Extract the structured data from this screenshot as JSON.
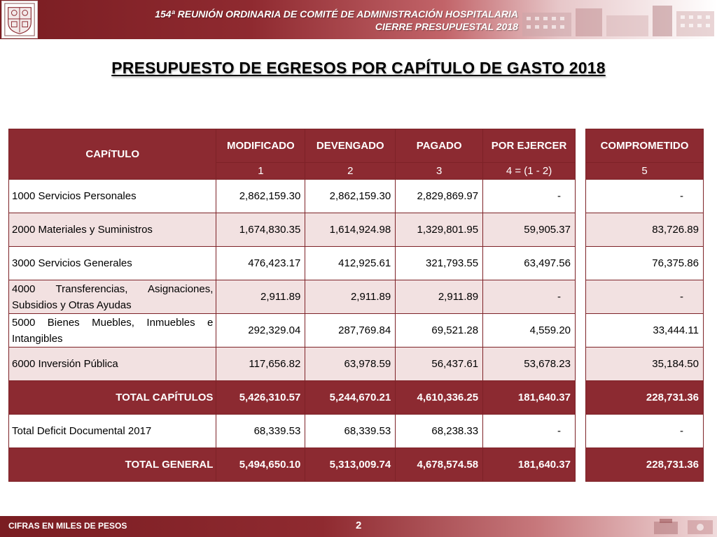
{
  "header": {
    "line1": "154ª REUNIÓN ORDINARIA DE COMITÉ DE ADMINISTRACIÓN HOSPITALARIA",
    "line2": "CIERRE PRESUPUESTAL 2018",
    "logo_icon": "hospital-crest-icon",
    "building_icon": "hospital-building-icon"
  },
  "title": "PRESUPUESTO DE EGRESOS POR CAPÍTULO DE GASTO 2018",
  "table": {
    "headers": {
      "capitulo": "CAPíTULO",
      "modificado": "MODIFICADO",
      "devengado": "DEVENGADO",
      "pagado": "PAGADO",
      "por_ejercer": "POR EJERCER",
      "comprometido": "COMPROMETIDO"
    },
    "subheaders": [
      "1",
      "2",
      "3",
      "4 = (1 - 2)",
      "5"
    ],
    "rows": [
      {
        "label": "1000 Servicios Personales",
        "modificado": "2,862,159.30",
        "devengado": "2,862,159.30",
        "pagado": "2,829,869.97",
        "por_ejercer": "-",
        "comprometido": "-"
      },
      {
        "label": "2000 Materiales y Suministros",
        "modificado": "1,674,830.35",
        "devengado": "1,614,924.98",
        "pagado": "1,329,801.95",
        "por_ejercer": "59,905.37",
        "comprometido": "83,726.89"
      },
      {
        "label": "3000 Servicios Generales",
        "modificado": "476,423.17",
        "devengado": "412,925.61",
        "pagado": "321,793.55",
        "por_ejercer": "63,497.56",
        "comprometido": "76,375.86"
      },
      {
        "label": "4000 Transferencias, Asignaciones, Subsidios y Otras Ayudas",
        "modificado": "2,911.89",
        "devengado": "2,911.89",
        "pagado": "2,911.89",
        "por_ejercer": "-",
        "comprometido": "-"
      },
      {
        "label": "5000 Bienes Muebles, Inmuebles e Intangibles",
        "modificado": "292,329.04",
        "devengado": "287,769.84",
        "pagado": "69,521.28",
        "por_ejercer": "4,559.20",
        "comprometido": "33,444.11"
      },
      {
        "label": "6000 Inversión Pública",
        "modificado": "117,656.82",
        "devengado": "63,978.59",
        "pagado": "56,437.61",
        "por_ejercer": "53,678.23",
        "comprometido": "35,184.50"
      },
      {
        "label": "TOTAL CAPÍTULOS",
        "modificado": "5,426,310.57",
        "devengado": "5,244,670.21",
        "pagado": "4,610,336.25",
        "por_ejercer": "181,640.37",
        "comprometido": "228,731.36"
      },
      {
        "label": "Total Deficit Documental 2017",
        "modificado": "68,339.53",
        "devengado": "68,339.53",
        "pagado": "68,238.33",
        "por_ejercer": "-",
        "comprometido": "-"
      },
      {
        "label": "TOTAL GENERAL",
        "modificado": "5,494,650.10",
        "devengado": "5,313,009.74",
        "pagado": "4,678,574.58",
        "por_ejercer": "181,640.37",
        "comprometido": "228,731.36"
      }
    ]
  },
  "footer": {
    "note": "CIFRAS EN MILES DE PESOS",
    "page": "2"
  }
}
